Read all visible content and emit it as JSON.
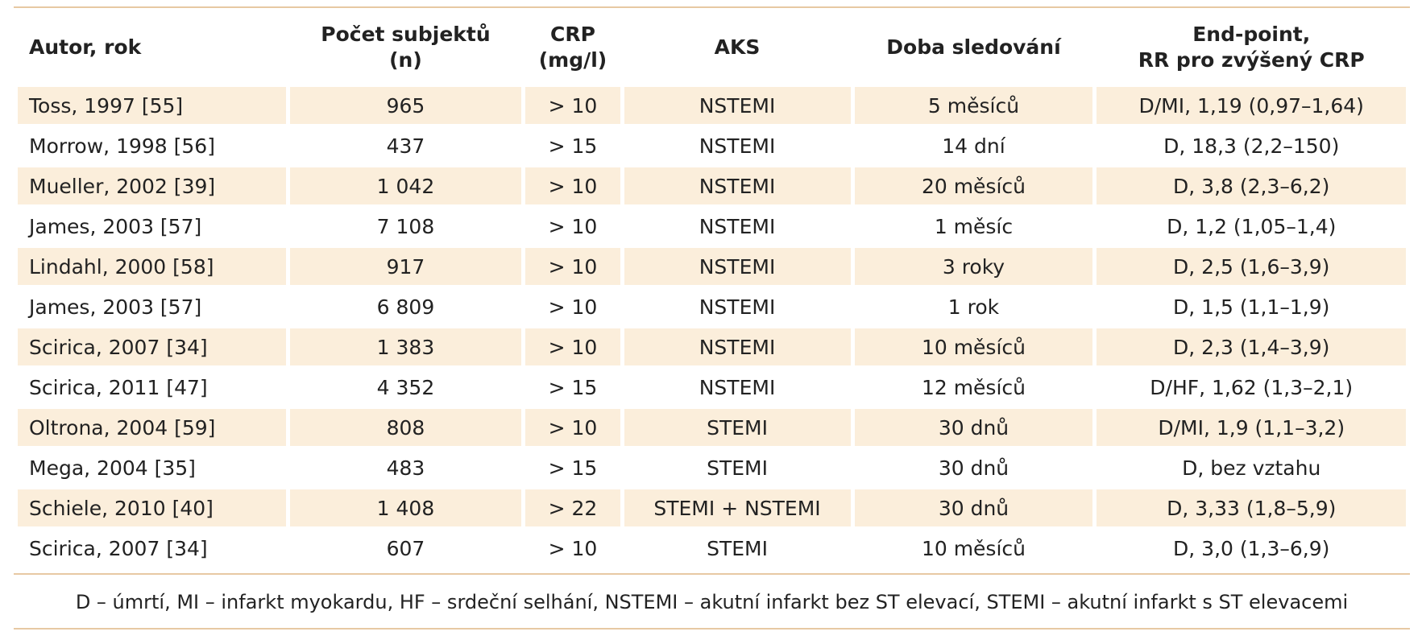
{
  "table": {
    "header": [
      "Autor, rok",
      "Počet subjektů\n(n)",
      "CRP\n(mg/l)",
      "AKS",
      "Doba sledování",
      "End-point,\nRR pro zvýšený CRP"
    ],
    "rows": [
      [
        "Toss, 1997 [55]",
        "965",
        "> 10",
        "NSTEMI",
        "5 měsíců",
        "D/MI, 1,19 (0,97–1,64)"
      ],
      [
        "Morrow, 1998 [56]",
        "437",
        "> 15",
        "NSTEMI",
        "14 dní",
        "D, 18,3 (2,2–150)"
      ],
      [
        "Mueller, 2002 [39]",
        "1 042",
        "> 10",
        "NSTEMI",
        "20 měsíců",
        "D, 3,8 (2,3–6,2)"
      ],
      [
        "James, 2003 [57]",
        "7 108",
        "> 10",
        "NSTEMI",
        "1 měsíc",
        "D, 1,2 (1,05–1,4)"
      ],
      [
        "Lindahl, 2000 [58]",
        "917",
        "> 10",
        "NSTEMI",
        "3 roky",
        "D, 2,5 (1,6–3,9)"
      ],
      [
        "James, 2003 [57]",
        "6 809",
        "> 10",
        "NSTEMI",
        "1 rok",
        "D, 1,5 (1,1–1,9)"
      ],
      [
        "Scirica, 2007 [34]",
        "1 383",
        "> 10",
        "NSTEMI",
        "10 měsíců",
        "D, 2,3 (1,4–3,9)"
      ],
      [
        "Scirica, 2011 [47]",
        "4 352",
        "> 15",
        "NSTEMI",
        "12 měsíců",
        "D/HF, 1,62 (1,3–2,1)"
      ],
      [
        "Oltrona, 2004 [59]",
        "808",
        "> 10",
        "STEMI",
        "30 dnů",
        "D/MI, 1,9 (1,1–3,2)"
      ],
      [
        "Mega, 2004 [35]",
        "483",
        "> 15",
        "STEMI",
        "30 dnů",
        "D, bez vztahu"
      ],
      [
        "Schiele, 2010 [40]",
        "1 408",
        "> 22",
        "STEMI + NSTEMI",
        "30 dnů",
        "D, 3,33 (1,8–5,9)"
      ],
      [
        "Scirica, 2007 [34]",
        "607",
        "> 10",
        "STEMI",
        "10 měsíců",
        "D, 3,0 (1,3–6,9)"
      ]
    ],
    "footnote": "D – úmrtí, MI – infarkt myokardu, HF – srdeční selhání, NSTEMI – akutní infarkt bez ST elevací, STEMI – akutní infarkt s ST elevacemi"
  }
}
